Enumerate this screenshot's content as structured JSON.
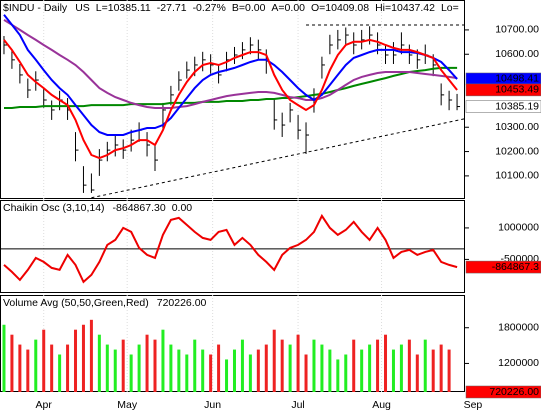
{
  "chart_data": {
    "type": "stock",
    "x": [
      0,
      2,
      4,
      6,
      8,
      10,
      12,
      14,
      16,
      18,
      20,
      22,
      24,
      26,
      28,
      30,
      32,
      34,
      36,
      38,
      40,
      42,
      44,
      46,
      48,
      50,
      52,
      54,
      56,
      58,
      60,
      62,
      64,
      66,
      68,
      70,
      72,
      74,
      76,
      78,
      80,
      82,
      84,
      86,
      88,
      90,
      92,
      94,
      96,
      98,
      100,
      102,
      104,
      106,
      108,
      110,
      112,
      114
    ],
    "xlim": [
      -1,
      116
    ],
    "xticks": [
      {
        "value": 10,
        "label": "Apr"
      },
      {
        "value": 31,
        "label": "May"
      },
      {
        "value": 52.5,
        "label": "Jun"
      },
      {
        "value": 74,
        "label": "Jul"
      },
      {
        "value": 95,
        "label": "Aug"
      },
      {
        "value": 118,
        "label": "Sep"
      }
    ],
    "panels": [
      {
        "type": "ohlc",
        "title": "$INDU - Daily",
        "header": [
          {
            "text": "US",
            "color": "#000000"
          },
          {
            "text": "L=10385.11",
            "color": "#ff0000"
          },
          {
            "text": "-27.71",
            "color": "#ff0000"
          },
          {
            "text": "-0.27%",
            "color": "#ff0000"
          },
          {
            "text": "B=0.00",
            "color": "#000000"
          },
          {
            "text": "A=0.00",
            "color": "#000000"
          },
          {
            "text": "O=10409.08",
            "color": "#000000"
          },
          {
            "text": "Hi=10437.42",
            "color": "#000000"
          },
          {
            "text": "Lo=",
            "color": "#000000"
          }
        ],
        "color": "#000000",
        "close": [
          10638,
          10577,
          10515,
          10453,
          10494,
          10412,
          10371,
          10412,
          10371,
          10206,
          10062,
          10042,
          10165,
          10206,
          10227,
          10206,
          10247,
          10288,
          10227,
          10165,
          10371,
          10433,
          10494,
          10535,
          10556,
          10577,
          10556,
          10515,
          10577,
          10597,
          10618,
          10638,
          10618,
          10577,
          10330,
          10309,
          10371,
          10288,
          10268,
          10433,
          10556,
          10638,
          10659,
          10679,
          10638,
          10659,
          10679,
          10638,
          10597,
          10597,
          10638,
          10597,
          10577,
          10597,
          10556,
          10433,
          10412,
          10385
        ],
        "high": [
          10675,
          10620,
          10560,
          10500,
          10530,
          10460,
          10410,
          10450,
          10420,
          10280,
          10140,
          10110,
          10210,
          10240,
          10270,
          10250,
          10290,
          10320,
          10280,
          10230,
          10400,
          10470,
          10530,
          10570,
          10590,
          10610,
          10600,
          10560,
          10610,
          10630,
          10650,
          10670,
          10660,
          10620,
          10420,
          10360,
          10400,
          10350,
          10320,
          10460,
          10590,
          10680,
          10700,
          10710,
          10690,
          10700,
          10715,
          10690,
          10640,
          10650,
          10690,
          10640,
          10620,
          10640,
          10600,
          10480,
          10450,
          10437
        ],
        "low": [
          10600,
          10540,
          10480,
          10420,
          10450,
          10380,
          10330,
          10370,
          10330,
          10160,
          10030,
          10030,
          10100,
          10160,
          10180,
          10170,
          10200,
          10240,
          10180,
          10120,
          10290,
          10390,
          10450,
          10500,
          10510,
          10530,
          10520,
          10480,
          10530,
          10560,
          10580,
          10600,
          10580,
          10520,
          10290,
          10260,
          10320,
          10250,
          10190,
          10360,
          10500,
          10600,
          10620,
          10640,
          10600,
          10620,
          10640,
          10600,
          10560,
          10560,
          10600,
          10560,
          10540,
          10560,
          10510,
          10390,
          10370,
          10370
        ],
        "series": [
          {
            "color": "#008800",
            "values": [
              10379,
              10379,
              10383,
              10383,
              10383,
              10387,
              10387,
              10387,
              10387,
              10387,
              10387,
              10391,
              10391,
              10391,
              10391,
              10391,
              10395,
              10395,
              10395,
              10395,
              10395,
              10400,
              10400,
              10400,
              10400,
              10404,
              10404,
              10404,
              10408,
              10408,
              10408,
              10412,
              10412,
              10416,
              10416,
              10420,
              10420,
              10424,
              10428,
              10433,
              10437,
              10445,
              10453,
              10461,
              10470,
              10478,
              10486,
              10494,
              10502,
              10511,
              10519,
              10527,
              10531,
              10535,
              10540,
              10544,
              10544,
              10544
            ]
          },
          {
            "color": "#993399",
            "values": [
              10741,
              10721,
              10700,
              10679,
              10659,
              10638,
              10618,
              10597,
              10577,
              10556,
              10527,
              10494,
              10461,
              10441,
              10424,
              10412,
              10400,
              10391,
              10383,
              10379,
              10379,
              10379,
              10383,
              10387,
              10395,
              10404,
              10412,
              10420,
              10428,
              10433,
              10437,
              10441,
              10445,
              10445,
              10441,
              10433,
              10424,
              10420,
              10412,
              10412,
              10420,
              10433,
              10453,
              10474,
              10494,
              10507,
              10515,
              10523,
              10527,
              10527,
              10527,
              10527,
              10523,
              10519,
              10515,
              10511,
              10507,
              10502
            ]
          },
          {
            "color": "#0000ff",
            "values": [
              10762,
              10721,
              10679,
              10618,
              10577,
              10535,
              10494,
              10461,
              10433,
              10391,
              10350,
              10309,
              10280,
              10268,
              10268,
              10268,
              10280,
              10288,
              10297,
              10297,
              10309,
              10338,
              10379,
              10420,
              10461,
              10494,
              10515,
              10527,
              10535,
              10544,
              10556,
              10568,
              10577,
              10577,
              10556,
              10527,
              10494,
              10461,
              10433,
              10412,
              10433,
              10474,
              10515,
              10556,
              10585,
              10597,
              10609,
              10618,
              10618,
              10618,
              10609,
              10609,
              10605,
              10597,
              10585,
              10568,
              10535,
              10498
            ]
          },
          {
            "color": "#ff0000",
            "values": [
              10659,
              10618,
              10568,
              10515,
              10486,
              10461,
              10433,
              10412,
              10391,
              10330,
              10247,
              10186,
              10173,
              10186,
              10206,
              10214,
              10227,
              10247,
              10247,
              10227,
              10288,
              10371,
              10433,
              10486,
              10527,
              10556,
              10564,
              10556,
              10568,
              10585,
              10597,
              10609,
              10609,
              10597,
              10515,
              10453,
              10412,
              10391,
              10371,
              10391,
              10453,
              10535,
              10597,
              10638,
              10651,
              10651,
              10659,
              10651,
              10638,
              10626,
              10618,
              10618,
              10609,
              10597,
              10585,
              10535,
              10494,
              10453
            ]
          }
        ],
        "lines": [
          {
            "x": [
              76,
              116
            ],
            "y": [
              10720,
              10720
            ]
          },
          {
            "x": [
              22,
              116
            ],
            "y": [
              10010,
              10335
            ]
          }
        ],
        "ylim": [
          10005,
          10823
        ],
        "yticks": [
          {
            "value": 10700,
            "label": "10700.00"
          },
          {
            "value": 10600,
            "label": "10600.00"
          },
          {
            "value": 10300,
            "label": "10300.00"
          },
          {
            "value": 10200,
            "label": "10200.00"
          },
          {
            "value": 10100,
            "label": "10100.00"
          }
        ],
        "last_labels": [
          {
            "value": 10498.41,
            "label": "10498.41",
            "color": "#0000ff",
            "text_color": "#ffffff"
          },
          {
            "value": 10453.49,
            "label": "10453.49",
            "color": "#ff0000",
            "text_color": "#ffffff"
          },
          {
            "value": 10385.19,
            "label": "10385.19",
            "color": "#ffffff",
            "text_color": "#000000"
          }
        ]
      },
      {
        "type": "line",
        "title": "Chaikin Osc (3,10,14)",
        "header": [
          {
            "text": "-864867.30",
            "color": "#ff0000"
          },
          {
            "text": "0.00",
            "color": "#000000"
          }
        ],
        "color": "#ee0000",
        "values": [
          -762000,
          -1095000,
          -1476000,
          -1000000,
          -429000,
          -619000,
          -905000,
          -1000000,
          -286000,
          -762000,
          -1571000,
          -1238000,
          -619000,
          190000,
          429000,
          1000000,
          810000,
          48000,
          -286000,
          -429000,
          667000,
          1381000,
          1476000,
          1143000,
          810000,
          524000,
          429000,
          810000,
          905000,
          190000,
          524000,
          190000,
          -286000,
          -619000,
          -1000000,
          -286000,
          48000,
          190000,
          429000,
          810000,
          1571000,
          1000000,
          667000,
          905000,
          1286000,
          810000,
          429000,
          1000000,
          429000,
          -429000,
          -143000,
          -48000,
          -286000,
          -143000,
          -48000,
          -619000,
          -762000,
          -864867
        ],
        "hline": 0,
        "ylim": [
          -2100000,
          2330000
        ],
        "yticks": [
          1000000,
          -500000
        ],
        "last_labels": [
          {
            "value": -864867,
            "label": "-864867.3",
            "color": "#ff0000",
            "text_color": "#ffffff"
          }
        ]
      },
      {
        "type": "bar",
        "title": "Volume Avg (50,50,Green,Red)",
        "header": [
          {
            "text": "720226.00",
            "color": "#ff0000"
          }
        ],
        "up_color": "#22ee22",
        "down_color": "#ee2222",
        "values": [
          1850000,
          1683000,
          1517000,
          1433000,
          1600000,
          1767000,
          1517000,
          1350000,
          1517000,
          1767000,
          1850000,
          1933000,
          1683000,
          1517000,
          1433000,
          1600000,
          1350000,
          1517000,
          1683000,
          1600000,
          1767000,
          1517000,
          1433000,
          1350000,
          1600000,
          1433000,
          1350000,
          1517000,
          1267000,
          1433000,
          1600000,
          1350000,
          1433000,
          1517000,
          1767000,
          1600000,
          1517000,
          1683000,
          1350000,
          1600000,
          1517000,
          1433000,
          1267000,
          1350000,
          1600000,
          1433000,
          1517000,
          1600000,
          1683000,
          1433000,
          1517000,
          1600000,
          1350000,
          1600000,
          1433000,
          1517000,
          1433000,
          720226
        ],
        "ylim": [
          720000,
          2350000
        ],
        "yticks": [
          1800000,
          1200000
        ],
        "last_labels": [
          {
            "value": 720226,
            "label": "720226.00",
            "color": "#ff0000",
            "text_color": "#ffffff"
          }
        ]
      }
    ]
  }
}
